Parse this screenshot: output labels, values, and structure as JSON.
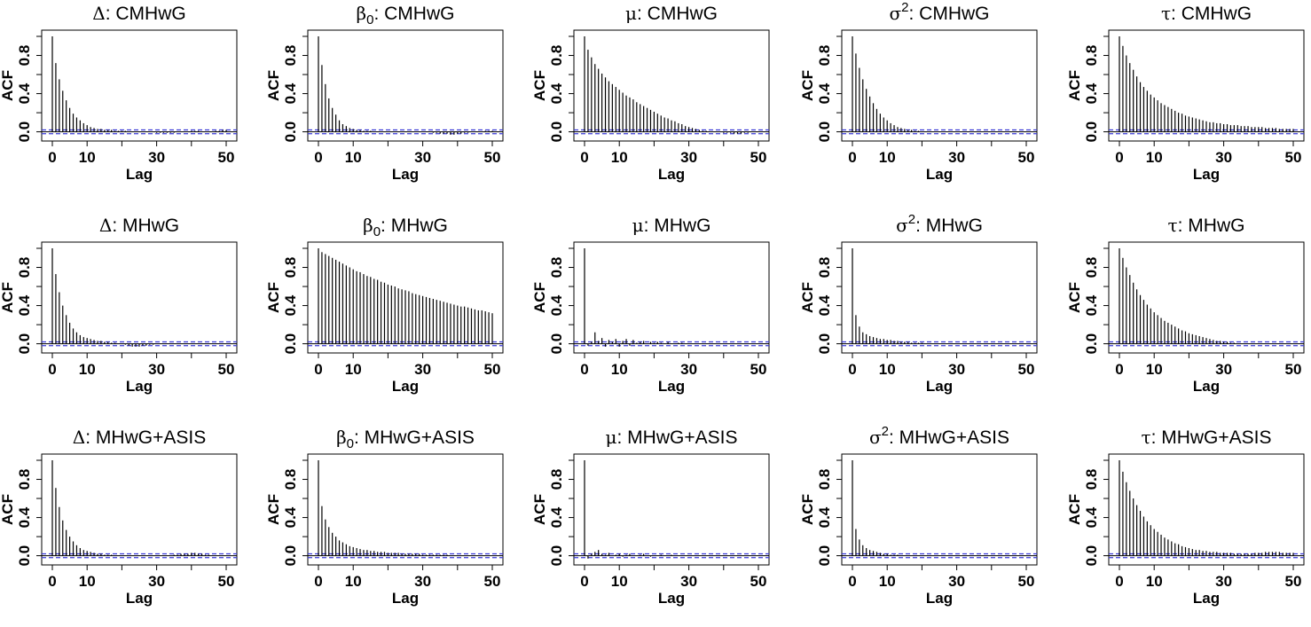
{
  "figure": {
    "panel_rows": [
      "CMHwG",
      "MHwG",
      "MHwG+ASIS"
    ]
  },
  "chart_data": [
    {
      "type": "bar",
      "subtype": "acf",
      "param": "Δ",
      "param_sub": "",
      "param_sup": "",
      "method": "CMHwG",
      "xlabel": "Lag",
      "ylabel": "ACF",
      "xlim": [
        0,
        50
      ],
      "ylim": [
        -0.05,
        1.0
      ],
      "xticks": [
        "0",
        "10",
        "30",
        "50"
      ],
      "yticks": [
        "0.0",
        "0.4",
        "0.8"
      ],
      "lags": [
        0,
        50
      ],
      "values": [
        1.0,
        0.72,
        0.55,
        0.43,
        0.33,
        0.25,
        0.19,
        0.15,
        0.12,
        0.09,
        0.07,
        0.05,
        0.04,
        0.03,
        0.03,
        0.02,
        0.02,
        0.02,
        0.01,
        0.01,
        0.01,
        0.01,
        0.0,
        0.0,
        0.0,
        0.0,
        0.0,
        0.0,
        0.0,
        0.0,
        -0.01,
        -0.01,
        -0.01,
        -0.01,
        -0.01,
        -0.01,
        0.0,
        0.0,
        0.0,
        0.0,
        0.01,
        0.01,
        0.01,
        0.0,
        0.0,
        0.0,
        0.0,
        0.01,
        0.01,
        0.02,
        0.02
      ],
      "conf_band": 0.02
    },
    {
      "type": "bar",
      "subtype": "acf",
      "param": "β",
      "param_sub": "0",
      "param_sup": "",
      "method": "CMHwG",
      "xlabel": "Lag",
      "ylabel": "ACF",
      "xlim": [
        0,
        50
      ],
      "ylim": [
        -0.05,
        1.0
      ],
      "xticks": [
        "0",
        "10",
        "30",
        "50"
      ],
      "yticks": [
        "0.0",
        "0.4",
        "0.8"
      ],
      "lags": [
        0,
        50
      ],
      "values": [
        1.0,
        0.7,
        0.5,
        0.35,
        0.25,
        0.18,
        0.12,
        0.08,
        0.06,
        0.04,
        0.03,
        0.02,
        0.02,
        0.01,
        0.01,
        0.01,
        0.0,
        0.0,
        0.0,
        0.0,
        0.0,
        0.0,
        0.0,
        0.0,
        0.0,
        0.0,
        0.0,
        0.0,
        0.0,
        0.0,
        0.0,
        0.0,
        0.0,
        -0.01,
        -0.01,
        -0.02,
        -0.02,
        -0.02,
        -0.03,
        -0.03,
        -0.02,
        -0.02,
        -0.01,
        -0.01,
        0.0,
        0.0,
        0.0,
        0.0,
        0.01,
        0.01,
        0.01
      ],
      "conf_band": 0.02
    },
    {
      "type": "bar",
      "subtype": "acf",
      "param": "μ",
      "param_sub": "",
      "param_sup": "",
      "method": "CMHwG",
      "xlabel": "Lag",
      "ylabel": "ACF",
      "xlim": [
        0,
        50
      ],
      "ylim": [
        -0.05,
        1.0
      ],
      "xticks": [
        "0",
        "10",
        "30",
        "50"
      ],
      "yticks": [
        "0.0",
        "0.4",
        "0.8"
      ],
      "lags": [
        0,
        50
      ],
      "values": [
        1.0,
        0.86,
        0.78,
        0.71,
        0.66,
        0.61,
        0.57,
        0.53,
        0.5,
        0.47,
        0.44,
        0.41,
        0.38,
        0.36,
        0.34,
        0.31,
        0.29,
        0.27,
        0.25,
        0.23,
        0.21,
        0.19,
        0.17,
        0.15,
        0.14,
        0.12,
        0.11,
        0.09,
        0.08,
        0.06,
        0.05,
        0.04,
        0.03,
        0.02,
        0.01,
        0.01,
        0.0,
        0.0,
        0.0,
        0.0,
        -0.01,
        -0.01,
        -0.01,
        -0.02,
        -0.02,
        -0.02,
        -0.01,
        -0.01,
        0.0,
        0.0,
        0.0
      ],
      "conf_band": 0.02
    },
    {
      "type": "bar",
      "subtype": "acf",
      "param": "σ",
      "param_sub": "",
      "param_sup": "2",
      "method": "CMHwG",
      "xlabel": "Lag",
      "ylabel": "ACF",
      "xlim": [
        0,
        50
      ],
      "ylim": [
        -0.05,
        1.0
      ],
      "xticks": [
        "0",
        "10",
        "30",
        "50"
      ],
      "yticks": [
        "0.0",
        "0.4",
        "0.8"
      ],
      "lags": [
        0,
        50
      ],
      "values": [
        1.0,
        0.82,
        0.67,
        0.55,
        0.45,
        0.37,
        0.3,
        0.24,
        0.19,
        0.15,
        0.12,
        0.09,
        0.07,
        0.05,
        0.04,
        0.03,
        0.02,
        0.02,
        0.01,
        0.01,
        0.0,
        0.0,
        0.0,
        0.0,
        0.0,
        0.0,
        0.0,
        0.0,
        0.0,
        0.0,
        0.0,
        0.0,
        0.0,
        0.0,
        0.0,
        0.0,
        0.0,
        0.0,
        0.0,
        0.0,
        0.0,
        0.0,
        0.0,
        0.0,
        0.0,
        0.0,
        0.0,
        0.0,
        0.0,
        0.0,
        0.0
      ],
      "conf_band": 0.02
    },
    {
      "type": "bar",
      "subtype": "acf",
      "param": "τ",
      "param_sub": "",
      "param_sup": "",
      "method": "CMHwG",
      "xlabel": "Lag",
      "ylabel": "ACF",
      "xlim": [
        0,
        50
      ],
      "ylim": [
        -0.05,
        1.0
      ],
      "xticks": [
        "0",
        "10",
        "30",
        "50"
      ],
      "yticks": [
        "0.0",
        "0.4",
        "0.8"
      ],
      "lags": [
        0,
        50
      ],
      "values": [
        1.0,
        0.9,
        0.8,
        0.72,
        0.65,
        0.58,
        0.52,
        0.47,
        0.43,
        0.39,
        0.36,
        0.33,
        0.3,
        0.28,
        0.26,
        0.24,
        0.22,
        0.2,
        0.19,
        0.17,
        0.16,
        0.15,
        0.14,
        0.13,
        0.12,
        0.11,
        0.1,
        0.1,
        0.09,
        0.09,
        0.08,
        0.08,
        0.07,
        0.07,
        0.07,
        0.06,
        0.06,
        0.06,
        0.05,
        0.05,
        0.05,
        0.05,
        0.04,
        0.04,
        0.04,
        0.04,
        0.03,
        0.03,
        0.03,
        0.03,
        0.03
      ],
      "conf_band": 0.02
    },
    {
      "type": "bar",
      "subtype": "acf",
      "param": "Δ",
      "param_sub": "",
      "param_sup": "",
      "method": "MHwG",
      "xlabel": "Lag",
      "ylabel": "ACF",
      "xlim": [
        0,
        50
      ],
      "ylim": [
        -0.05,
        1.0
      ],
      "xticks": [
        "0",
        "10",
        "30",
        "50"
      ],
      "yticks": [
        "0.0",
        "0.4",
        "0.8"
      ],
      "lags": [
        0,
        50
      ],
      "values": [
        1.0,
        0.73,
        0.54,
        0.4,
        0.3,
        0.22,
        0.16,
        0.12,
        0.09,
        0.07,
        0.06,
        0.05,
        0.04,
        0.03,
        0.03,
        0.02,
        0.02,
        0.01,
        0.01,
        0.0,
        0.0,
        -0.01,
        -0.02,
        -0.03,
        -0.03,
        -0.03,
        -0.02,
        -0.02,
        -0.01,
        -0.01,
        0.0,
        0.0,
        0.0,
        0.0,
        0.0,
        0.0,
        0.0,
        0.0,
        0.0,
        0.0,
        0.0,
        0.0,
        0.0,
        0.0,
        0.0,
        0.0,
        0.0,
        0.0,
        0.0,
        0.0,
        0.0
      ],
      "conf_band": 0.02
    },
    {
      "type": "bar",
      "subtype": "acf",
      "param": "β",
      "param_sub": "0",
      "param_sup": "",
      "method": "MHwG",
      "xlabel": "Lag",
      "ylabel": "ACF",
      "xlim": [
        0,
        50
      ],
      "ylim": [
        -0.05,
        1.0
      ],
      "xticks": [
        "0",
        "10",
        "30",
        "50"
      ],
      "yticks": [
        "0.0",
        "0.4",
        "0.8"
      ],
      "lags": [
        0,
        50
      ],
      "values": [
        1.0,
        0.96,
        0.94,
        0.92,
        0.9,
        0.88,
        0.86,
        0.84,
        0.82,
        0.8,
        0.78,
        0.76,
        0.75,
        0.73,
        0.71,
        0.7,
        0.68,
        0.67,
        0.65,
        0.64,
        0.62,
        0.61,
        0.6,
        0.58,
        0.57,
        0.56,
        0.55,
        0.53,
        0.52,
        0.51,
        0.5,
        0.49,
        0.48,
        0.47,
        0.46,
        0.45,
        0.44,
        0.43,
        0.42,
        0.41,
        0.4,
        0.39,
        0.39,
        0.38,
        0.37,
        0.36,
        0.35,
        0.35,
        0.34,
        0.33,
        0.32
      ],
      "conf_band": 0.02
    },
    {
      "type": "bar",
      "subtype": "acf",
      "param": "μ",
      "param_sub": "",
      "param_sup": "",
      "method": "MHwG",
      "xlabel": "Lag",
      "ylabel": "ACF",
      "xlim": [
        0,
        50
      ],
      "ylim": [
        -0.05,
        1.0
      ],
      "xticks": [
        "0",
        "10",
        "30",
        "50"
      ],
      "yticks": [
        "0.0",
        "0.4",
        "0.8"
      ],
      "lags": [
        0,
        50
      ],
      "values": [
        1.0,
        -0.02,
        0.02,
        0.12,
        0.03,
        0.06,
        -0.03,
        0.04,
        0.02,
        0.05,
        -0.03,
        0.03,
        0.05,
        -0.02,
        0.04,
        0.01,
        0.02,
        0.03,
        0.0,
        0.02,
        0.01,
        0.02,
        0.01,
        0.0,
        0.02,
        0.0,
        0.0,
        0.01,
        0.01,
        0.0,
        0.0,
        0.0,
        0.0,
        0.0,
        0.0,
        0.0,
        0.0,
        0.0,
        0.0,
        0.0,
        0.0,
        0.0,
        0.0,
        0.0,
        0.0,
        0.0,
        0.0,
        0.0,
        0.0,
        0.0,
        0.0
      ],
      "conf_band": 0.02
    },
    {
      "type": "bar",
      "subtype": "acf",
      "param": "σ",
      "param_sub": "",
      "param_sup": "2",
      "method": "MHwG",
      "xlabel": "Lag",
      "ylabel": "ACF",
      "xlim": [
        0,
        50
      ],
      "ylim": [
        -0.05,
        1.0
      ],
      "xticks": [
        "0",
        "10",
        "30",
        "50"
      ],
      "yticks": [
        "0.0",
        "0.4",
        "0.8"
      ],
      "lags": [
        0,
        50
      ],
      "values": [
        1.0,
        0.3,
        0.18,
        0.12,
        0.1,
        0.08,
        0.07,
        0.06,
        0.05,
        0.05,
        0.04,
        0.04,
        0.03,
        0.03,
        0.02,
        0.02,
        0.02,
        0.01,
        0.01,
        0.01,
        0.01,
        0.0,
        0.0,
        0.0,
        0.0,
        0.0,
        0.0,
        0.0,
        0.0,
        0.0,
        0.0,
        0.0,
        0.0,
        0.0,
        0.0,
        0.0,
        0.0,
        0.0,
        0.0,
        0.0,
        0.0,
        0.0,
        0.0,
        0.0,
        0.0,
        0.0,
        0.0,
        0.0,
        0.0,
        0.0,
        0.0
      ],
      "conf_band": 0.02
    },
    {
      "type": "bar",
      "subtype": "acf",
      "param": "τ",
      "param_sub": "",
      "param_sup": "",
      "method": "MHwG",
      "xlabel": "Lag",
      "ylabel": "ACF",
      "xlim": [
        0,
        50
      ],
      "ylim": [
        -0.05,
        1.0
      ],
      "xticks": [
        "0",
        "10",
        "30",
        "50"
      ],
      "yticks": [
        "0.0",
        "0.4",
        "0.8"
      ],
      "lags": [
        0,
        50
      ],
      "values": [
        1.0,
        0.9,
        0.8,
        0.72,
        0.64,
        0.57,
        0.51,
        0.46,
        0.41,
        0.37,
        0.33,
        0.3,
        0.27,
        0.24,
        0.22,
        0.2,
        0.18,
        0.16,
        0.14,
        0.13,
        0.11,
        0.1,
        0.09,
        0.08,
        0.07,
        0.06,
        0.05,
        0.04,
        0.03,
        0.03,
        0.02,
        0.02,
        0.01,
        0.01,
        0.0,
        0.0,
        0.0,
        0.0,
        0.0,
        0.0,
        0.0,
        0.0,
        0.0,
        0.0,
        0.0,
        0.0,
        0.0,
        0.0,
        0.0,
        0.0,
        0.0
      ],
      "conf_band": 0.02
    },
    {
      "type": "bar",
      "subtype": "acf",
      "param": "Δ",
      "param_sub": "",
      "param_sup": "",
      "method": "MHwG+ASIS",
      "xlabel": "Lag",
      "ylabel": "ACF",
      "xlim": [
        0,
        50
      ],
      "ylim": [
        -0.05,
        1.0
      ],
      "xticks": [
        "0",
        "10",
        "30",
        "50"
      ],
      "yticks": [
        "0.0",
        "0.4",
        "0.8"
      ],
      "lags": [
        0,
        50
      ],
      "values": [
        1.0,
        0.71,
        0.51,
        0.37,
        0.27,
        0.2,
        0.15,
        0.11,
        0.08,
        0.06,
        0.05,
        0.04,
        0.03,
        0.02,
        0.02,
        0.01,
        0.01,
        0.01,
        0.0,
        0.0,
        0.0,
        0.0,
        0.0,
        0.0,
        0.0,
        0.0,
        0.0,
        0.0,
        0.0,
        0.0,
        0.0,
        0.0,
        0.0,
        0.0,
        0.0,
        0.01,
        0.01,
        0.02,
        0.02,
        0.02,
        0.03,
        0.03,
        0.02,
        0.02,
        0.01,
        0.01,
        0.0,
        0.0,
        0.0,
        0.0,
        0.0
      ],
      "conf_band": 0.02
    },
    {
      "type": "bar",
      "subtype": "acf",
      "param": "β",
      "param_sub": "0",
      "param_sup": "",
      "method": "MHwG+ASIS",
      "xlabel": "Lag",
      "ylabel": "ACF",
      "xlim": [
        0,
        50
      ],
      "ylim": [
        -0.05,
        1.0
      ],
      "xticks": [
        "0",
        "10",
        "30",
        "50"
      ],
      "yticks": [
        "0.0",
        "0.4",
        "0.8"
      ],
      "lags": [
        0,
        50
      ],
      "values": [
        1.0,
        0.52,
        0.38,
        0.3,
        0.24,
        0.2,
        0.16,
        0.14,
        0.12,
        0.1,
        0.09,
        0.08,
        0.07,
        0.06,
        0.06,
        0.05,
        0.05,
        0.04,
        0.04,
        0.04,
        0.03,
        0.03,
        0.03,
        0.03,
        0.02,
        0.02,
        0.02,
        0.02,
        0.02,
        0.02,
        0.01,
        0.01,
        0.01,
        0.01,
        0.01,
        0.01,
        0.01,
        0.01,
        0.0,
        0.0,
        0.0,
        0.0,
        0.0,
        0.0,
        0.0,
        0.0,
        0.0,
        0.0,
        0.0,
        0.0,
        0.0
      ],
      "conf_band": 0.02
    },
    {
      "type": "bar",
      "subtype": "acf",
      "param": "μ",
      "param_sub": "",
      "param_sup": "",
      "method": "MHwG+ASIS",
      "xlabel": "Lag",
      "ylabel": "ACF",
      "xlim": [
        0,
        50
      ],
      "ylim": [
        -0.05,
        1.0
      ],
      "xticks": [
        "0",
        "10",
        "30",
        "50"
      ],
      "yticks": [
        "0.0",
        "0.4",
        "0.8"
      ],
      "lags": [
        0,
        50
      ],
      "values": [
        1.0,
        -0.03,
        0.02,
        0.04,
        0.06,
        0.02,
        0.01,
        0.03,
        0.0,
        0.01,
        0.02,
        -0.01,
        0.01,
        0.02,
        0.0,
        0.0,
        0.01,
        0.02,
        0.0,
        -0.01,
        0.0,
        0.0,
        0.01,
        0.0,
        0.0,
        0.01,
        0.0,
        0.0,
        0.0,
        0.0,
        0.0,
        0.0,
        0.0,
        0.0,
        0.0,
        0.0,
        0.0,
        0.0,
        0.0,
        0.0,
        0.0,
        0.0,
        0.0,
        0.0,
        0.0,
        0.0,
        0.0,
        0.0,
        0.0,
        0.0,
        0.0
      ],
      "conf_band": 0.02
    },
    {
      "type": "bar",
      "subtype": "acf",
      "param": "σ",
      "param_sub": "",
      "param_sup": "2",
      "method": "MHwG+ASIS",
      "xlabel": "Lag",
      "ylabel": "ACF",
      "xlim": [
        0,
        50
      ],
      "ylim": [
        -0.05,
        1.0
      ],
      "xticks": [
        "0",
        "10",
        "30",
        "50"
      ],
      "yticks": [
        "0.0",
        "0.4",
        "0.8"
      ],
      "lags": [
        0,
        50
      ],
      "values": [
        1.0,
        0.28,
        0.17,
        0.11,
        0.08,
        0.06,
        0.05,
        0.04,
        0.03,
        0.02,
        0.02,
        0.01,
        0.01,
        0.01,
        0.0,
        0.0,
        0.0,
        0.0,
        0.0,
        0.0,
        0.0,
        0.0,
        0.0,
        0.0,
        0.0,
        0.0,
        0.0,
        0.0,
        0.0,
        0.0,
        0.0,
        0.0,
        0.0,
        0.0,
        0.0,
        0.0,
        0.0,
        0.0,
        0.0,
        0.0,
        0.0,
        0.0,
        0.0,
        0.0,
        0.0,
        0.0,
        0.0,
        0.0,
        0.0,
        0.0,
        0.0
      ],
      "conf_band": 0.02
    },
    {
      "type": "bar",
      "subtype": "acf",
      "param": "τ",
      "param_sub": "",
      "param_sup": "",
      "method": "MHwG+ASIS",
      "xlabel": "Lag",
      "ylabel": "ACF",
      "xlim": [
        0,
        50
      ],
      "ylim": [
        -0.05,
        1.0
      ],
      "xticks": [
        "0",
        "10",
        "30",
        "50"
      ],
      "yticks": [
        "0.0",
        "0.4",
        "0.8"
      ],
      "lags": [
        0,
        50
      ],
      "values": [
        1.0,
        0.88,
        0.77,
        0.68,
        0.6,
        0.53,
        0.47,
        0.41,
        0.36,
        0.32,
        0.28,
        0.25,
        0.22,
        0.19,
        0.17,
        0.15,
        0.13,
        0.12,
        0.1,
        0.09,
        0.08,
        0.07,
        0.06,
        0.06,
        0.05,
        0.05,
        0.04,
        0.04,
        0.04,
        0.03,
        0.03,
        0.03,
        0.03,
        0.02,
        0.02,
        0.02,
        0.02,
        0.02,
        0.02,
        0.03,
        0.03,
        0.03,
        0.04,
        0.04,
        0.04,
        0.04,
        0.04,
        0.03,
        0.03,
        0.03,
        0.03
      ],
      "conf_band": 0.02
    }
  ]
}
